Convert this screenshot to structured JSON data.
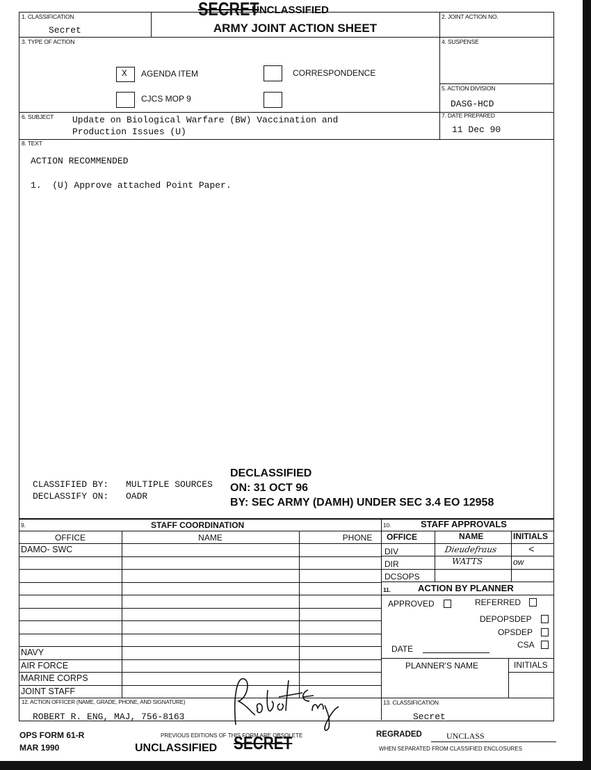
{
  "header": {
    "classification_struck": "SECRET",
    "classification_new": "UNCLASSIFIED"
  },
  "form": {
    "title": "ARMY JOINT ACTION SHEET",
    "classification": {
      "label": "1. CLASSIFICATION",
      "value": "Secret"
    },
    "joint_action_no": {
      "label": "2. JOINT ACTION NO.",
      "value": ""
    },
    "type_of_action": {
      "label": "3. TYPE OF ACTION",
      "options": [
        {
          "label": "AGENDA ITEM",
          "checked": true,
          "mark": "X"
        },
        {
          "label": "CORRESPONDENCE",
          "checked": false
        },
        {
          "label": "CJCS MOP 9",
          "checked": false
        },
        {
          "label": "",
          "checked": false
        }
      ]
    },
    "suspense": {
      "label": "4. SUSPENSE",
      "value": ""
    },
    "action_division": {
      "label": "5. ACTION DIVISION",
      "value": "DASG-HCD"
    },
    "subject": {
      "label": "6. SUBJECT",
      "value_line1": "Update on Biological Warfare (BW) Vaccination and",
      "value_line2": "Production Issues (U)"
    },
    "date_prepared": {
      "label": "7. DATE PREPARED",
      "value": "11 Dec 90"
    },
    "text": {
      "label": "8. TEXT",
      "heading": "ACTION RECOMMENDED",
      "item": "1.  (U) Approve attached Point Paper.",
      "classified_by_label": "CLASSIFIED BY:",
      "classified_by": "MULTIPLE SOURCES",
      "declassify_on_label": "DECLASSIFY ON:",
      "declassify_on": "OADR",
      "stamp_line1": "DECLASSIFIED",
      "stamp_line2": "ON: 31 OCT 96",
      "stamp_line3": "BY: SEC ARMY (DAMH) UNDER SEC 3.4 EO 12958"
    },
    "staff_coordination": {
      "number": "9.",
      "title": "STAFF COORDINATION",
      "columns": [
        "OFFICE",
        "NAME",
        "PHONE"
      ],
      "rows": [
        "DAMO- SWC",
        "",
        "",
        "",
        "",
        "",
        "",
        "",
        "NAVY",
        "AIR FORCE",
        "MARINE CORPS",
        "JOINT STAFF"
      ]
    },
    "staff_approvals": {
      "number": "10.",
      "title": "STAFF APPROVALS",
      "columns": [
        "OFFICE",
        "NAME",
        "INITIALS"
      ],
      "rows": [
        {
          "office": "DIV",
          "name": "Dieudefraus",
          "initials": "<"
        },
        {
          "office": "DIR",
          "name": "WATTS",
          "initials": "ow"
        },
        {
          "office": "DCSOPS",
          "name": "",
          "initials": ""
        }
      ]
    },
    "action_by_planner": {
      "number": "11.",
      "title": "ACTION BY PLANNER",
      "approved": "APPROVED",
      "referred": "REFERRED",
      "depopsdep": "DEPOPSDEP",
      "opsdep": "OPSDEP",
      "csa": "CSA",
      "date": "DATE",
      "planners_name": "PLANNER'S NAME",
      "initials": "INITIALS"
    },
    "action_officer": {
      "label": "12. ACTION OFFICER (NAME, GRADE, PHONE, AND SIGNATURE)",
      "value": "ROBERT R. ENG, MAJ, 756-8163",
      "signature": "Robert Eng"
    },
    "classification_bottom": {
      "label": "13. CLASSIFICATION",
      "value": "Secret"
    }
  },
  "footer": {
    "form_number": "OPS FORM 61-R",
    "form_date": "MAR 1990",
    "previous_editions": "PREVIOUS EDITIONS OF THIS FORM ARE OBSOLETE",
    "classification_new": "UNCLASSIFIED",
    "classification_struck": "SECRET",
    "regraded_label": "REGRADED",
    "regraded_value": "UNCLASS",
    "separated_note": "WHEN SEPARATED FROM CLASSIFIED ENCLOSURES"
  }
}
